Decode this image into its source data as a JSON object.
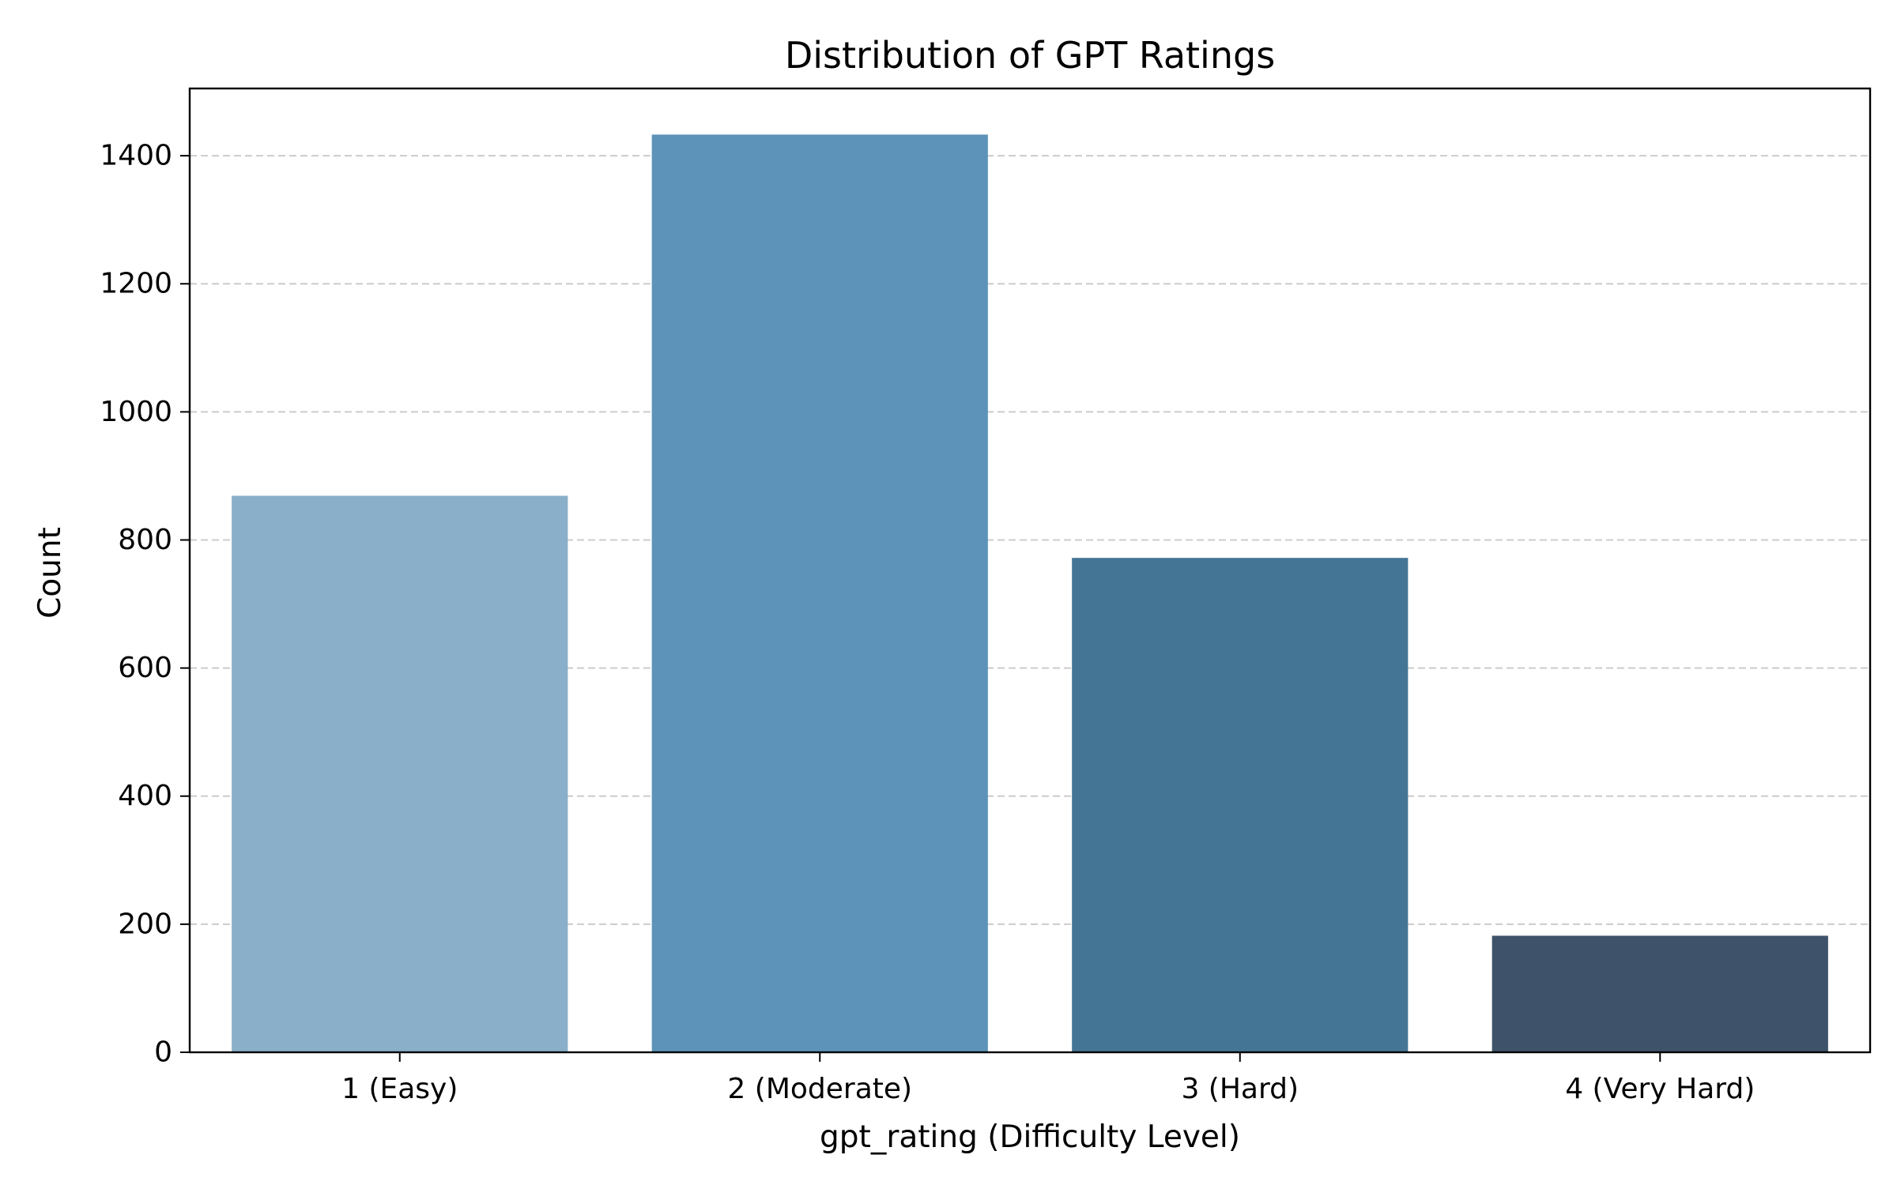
{
  "chart_data": {
    "type": "bar",
    "title": "Distribution of GPT Ratings",
    "xlabel": "gpt_rating (Difficulty Level)",
    "ylabel": "Count",
    "categories": [
      "1 (Easy)",
      "2 (Moderate)",
      "3 (Hard)",
      "4 (Very Hard)"
    ],
    "values": [
      869,
      1433,
      772,
      182
    ],
    "colors": [
      "#89afc9",
      "#5d93b9",
      "#457594",
      "#3e5369"
    ],
    "ylim": [
      0,
      1505
    ],
    "yticks": [
      0,
      200,
      400,
      600,
      800,
      1000,
      1200,
      1400
    ],
    "grid": "y-dashed",
    "grid_color": "#cccccc",
    "legend": "none"
  }
}
